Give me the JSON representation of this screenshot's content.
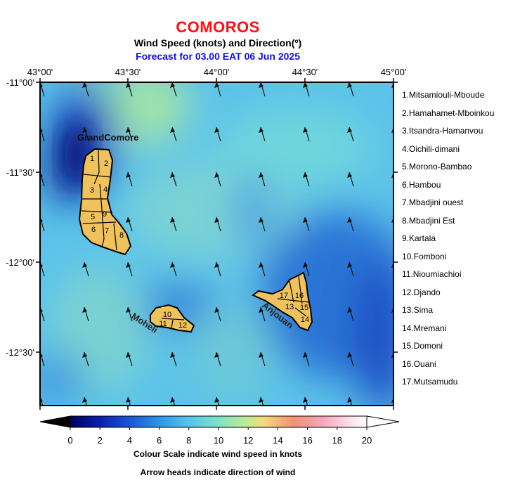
{
  "header": {
    "country": "COMOROS",
    "subtitle": "Wind Speed (knots) and Direction(º)",
    "forecast": "Forecast for  03.00 EAT 06 Jun 2025"
  },
  "axes": {
    "lon_labels": [
      "43°00'",
      "43°30'",
      "44°00'",
      "44°30'",
      "45°00'"
    ],
    "lat_labels": [
      "-11°00'",
      "-11°30'",
      "-12°00'",
      "-12°30'"
    ]
  },
  "islands": {
    "grande_comore": "GrandComore",
    "moheli": "Moheli",
    "anjouan": "Anjouan"
  },
  "district_numbers": [
    "1",
    "2",
    "3",
    "4",
    "5",
    "6",
    "7",
    "8",
    "9",
    "10",
    "11",
    "12",
    "13",
    "14",
    "15",
    "16",
    "17"
  ],
  "districts": [
    "1.Mitsamiouli-Mboude",
    "2.Hamahamet-Mboinkou",
    "3.Itsandra-Hamanvou",
    "4.Oichili-dimani",
    "5.Morono-Bambao",
    "6.Hambou",
    "7.Mbadjini ouest",
    "8.Mbadjini Est",
    "9.Kartala",
    "10.Fomboni",
    "11.Nioumiachioi",
    "12.Djando",
    "13.Sima",
    "14.Mremani",
    "15.Domoni",
    "16.Ouani",
    "17.Mutsamudu"
  ],
  "colorbar": {
    "ticks": [
      "0",
      "2",
      "4",
      "6",
      "8",
      "10",
      "12",
      "14",
      "16",
      "18",
      "20"
    ],
    "caption1": "Colour Scale indicate wind speed in knots",
    "caption2": "Arrow heads indicate direction of wind",
    "colors": [
      "#000000",
      "#000aa0",
      "#0a3fcc",
      "#2b86e0",
      "#52bde8",
      "#7be0c8",
      "#b8ec96",
      "#f0e07c",
      "#f39c6e",
      "#f3a0b4",
      "#fbd8e4",
      "#ffffff"
    ]
  },
  "wind_field": {
    "units": "knots",
    "predominant_direction": "south-southeast",
    "speed_range": [
      2,
      12
    ]
  }
}
